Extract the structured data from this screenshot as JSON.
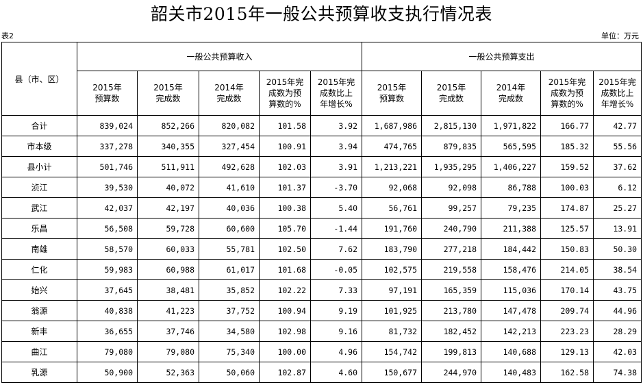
{
  "title": "韶关市2015年一般公共预算收支执行情况表",
  "table_no": "表2",
  "unit": "单位：万元",
  "row_header": "县（市、区）",
  "groups": {
    "income": "一般公共预算收入",
    "expense": "一般公共预算支出"
  },
  "columns": [
    "2015年\n预算数",
    "2015年\n完成数",
    "2014年\n完成数",
    "2015年完\n成数为预\n算数的%",
    "2015年完\n成数比上\n年增长%"
  ],
  "rows": [
    {
      "name": "合计",
      "income": [
        "839,024",
        "852,266",
        "820,082",
        "101.58",
        "3.92"
      ],
      "expense": [
        "1,687,986",
        "2,815,130",
        "1,971,822",
        "166.77",
        "42.77"
      ]
    },
    {
      "name": "市本级",
      "income": [
        "337,278",
        "340,355",
        "327,454",
        "100.91",
        "3.94"
      ],
      "expense": [
        "474,765",
        "879,835",
        "565,595",
        "185.32",
        "55.56"
      ]
    },
    {
      "name": "县小计",
      "income": [
        "501,746",
        "511,911",
        "492,628",
        "102.03",
        "3.91"
      ],
      "expense": [
        "1,213,221",
        "1,935,295",
        "1,406,227",
        "159.52",
        "37.62"
      ]
    },
    {
      "name": "浈江",
      "income": [
        "39,530",
        "40,072",
        "41,610",
        "101.37",
        "-3.70"
      ],
      "expense": [
        "92,068",
        "92,098",
        "86,788",
        "100.03",
        "6.12"
      ]
    },
    {
      "name": "武江",
      "income": [
        "42,037",
        "42,197",
        "40,036",
        "100.38",
        "5.40"
      ],
      "expense": [
        "56,761",
        "99,257",
        "79,235",
        "174.87",
        "25.27"
      ]
    },
    {
      "name": "乐昌",
      "income": [
        "56,508",
        "59,728",
        "60,600",
        "105.70",
        "-1.44"
      ],
      "expense": [
        "191,760",
        "240,790",
        "211,388",
        "125.57",
        "13.91"
      ]
    },
    {
      "name": "南雄",
      "income": [
        "58,570",
        "60,033",
        "55,781",
        "102.50",
        "7.62"
      ],
      "expense": [
        "183,790",
        "277,218",
        "184,442",
        "150.83",
        "50.30"
      ]
    },
    {
      "name": "仁化",
      "income": [
        "59,983",
        "60,988",
        "61,017",
        "101.68",
        "-0.05"
      ],
      "expense": [
        "102,575",
        "219,558",
        "158,476",
        "214.05",
        "38.54"
      ]
    },
    {
      "name": "始兴",
      "income": [
        "37,645",
        "38,481",
        "35,852",
        "102.22",
        "7.33"
      ],
      "expense": [
        "97,191",
        "165,359",
        "115,036",
        "170.14",
        "43.75"
      ]
    },
    {
      "name": "翁源",
      "income": [
        "40,838",
        "41,223",
        "37,752",
        "100.94",
        "9.19"
      ],
      "expense": [
        "101,925",
        "213,780",
        "147,478",
        "209.74",
        "44.96"
      ]
    },
    {
      "name": "新丰",
      "income": [
        "36,655",
        "37,746",
        "34,580",
        "102.98",
        "9.16"
      ],
      "expense": [
        "81,732",
        "182,452",
        "142,213",
        "223.23",
        "28.29"
      ]
    },
    {
      "name": "曲江",
      "income": [
        "79,080",
        "79,080",
        "75,340",
        "100.00",
        "4.96"
      ],
      "expense": [
        "154,742",
        "199,813",
        "140,688",
        "129.13",
        "42.03"
      ]
    },
    {
      "name": "乳源",
      "income": [
        "50,900",
        "52,363",
        "50,060",
        "102.87",
        "4.60"
      ],
      "expense": [
        "150,677",
        "244,970",
        "140,483",
        "162.58",
        "74.38"
      ]
    }
  ]
}
